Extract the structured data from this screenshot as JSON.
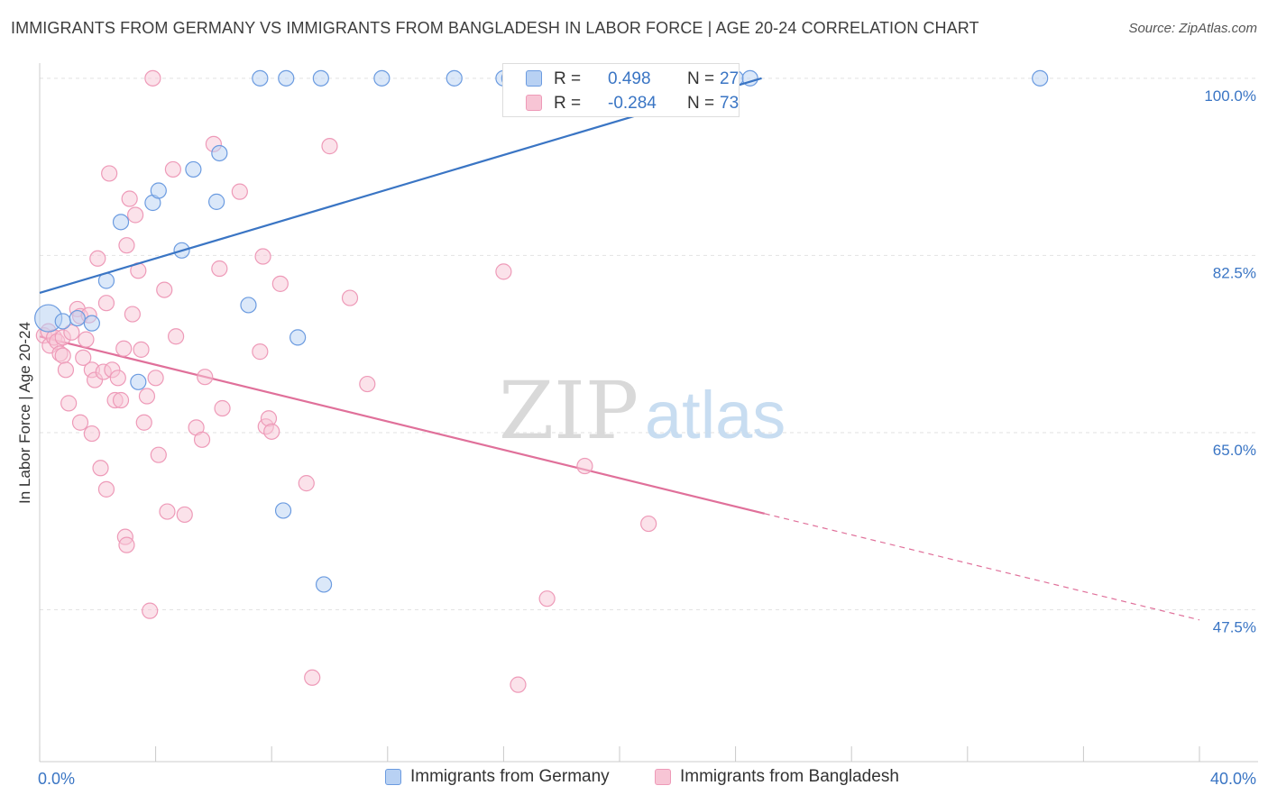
{
  "title": "IMMIGRANTS FROM GERMANY VS IMMIGRANTS FROM BANGLADESH IN LABOR FORCE | AGE 20-24 CORRELATION CHART",
  "source": "Source: ZipAtlas.com",
  "watermark": {
    "zip": "ZIP",
    "atlas": "atlas"
  },
  "colors": {
    "blue": "#3a75c4",
    "blue_fill": "#b8d1f3",
    "blue_stroke": "#6b9be0",
    "pink": "#e0709a",
    "pink_fill": "#f7c5d5",
    "pink_stroke": "#ee9ab8",
    "tick_label": "#3a75c4",
    "grid": "#e2e2e2"
  },
  "stats": [
    {
      "swatch": "blue",
      "r_label": "R =",
      "r_value": "0.498",
      "n_label": "N =",
      "n_value": "27"
    },
    {
      "swatch": "pink",
      "r_label": "R =",
      "r_value": "-0.284",
      "n_label": "N =",
      "n_value": "73"
    }
  ],
  "legend": [
    {
      "swatch": "blue",
      "label": "Immigrants from Germany"
    },
    {
      "swatch": "pink",
      "label": "Immigrants from Bangladesh"
    }
  ],
  "chart_data": {
    "type": "scatter",
    "title": "IMMIGRANTS FROM GERMANY VS IMMIGRANTS FROM BANGLADESH IN LABOR FORCE | AGE 20-24 CORRELATION CHART",
    "xlabel": "",
    "ylabel": "In Labor Force | Age 20-24",
    "xlim": [
      0,
      40
    ],
    "ylim": [
      32.5,
      101.5
    ],
    "x_tick_labels": [
      {
        "value": 0,
        "label": "0.0%"
      },
      {
        "value": 40,
        "label": "40.0%"
      }
    ],
    "y_tick_labels": [
      {
        "value": 47.5,
        "label": "47.5%"
      },
      {
        "value": 65.0,
        "label": "65.0%"
      },
      {
        "value": 82.5,
        "label": "82.5%"
      },
      {
        "value": 100.0,
        "label": "100.0%"
      }
    ],
    "grid": true,
    "legend_position": "bottom",
    "series": [
      {
        "name": "Immigrants from Germany",
        "color": "blue",
        "points": [
          [
            0.3,
            76.3
          ],
          [
            0.8,
            76.0
          ],
          [
            1.3,
            76.3
          ],
          [
            1.8,
            75.8
          ],
          [
            2.3,
            80.0
          ],
          [
            2.8,
            85.8
          ],
          [
            3.4,
            70.0
          ],
          [
            3.9,
            87.7
          ],
          [
            4.1,
            88.9
          ],
          [
            4.9,
            83.0
          ],
          [
            5.3,
            91.0
          ],
          [
            6.1,
            87.8
          ],
          [
            6.2,
            92.6
          ],
          [
            7.2,
            77.6
          ],
          [
            7.6,
            100.0
          ],
          [
            8.5,
            100.0
          ],
          [
            8.4,
            57.3
          ],
          [
            8.9,
            74.4
          ],
          [
            9.7,
            100.0
          ],
          [
            9.8,
            50.0
          ],
          [
            11.8,
            100.0
          ],
          [
            14.3,
            100.0
          ],
          [
            16.0,
            100.0
          ],
          [
            16.2,
            100.0
          ],
          [
            24.0,
            100.0
          ],
          [
            24.5,
            100.0
          ],
          [
            34.5,
            100.0
          ]
        ],
        "point_sizes": {
          "0": "large"
        },
        "trend": {
          "x": [
            0,
            24.9
          ],
          "y": [
            78.8,
            100.0
          ],
          "dashed_to": null
        }
      },
      {
        "name": "Immigrants from Bangladesh",
        "color": "pink",
        "points": [
          [
            0.15,
            74.6
          ],
          [
            0.3,
            75.0
          ],
          [
            0.35,
            73.6
          ],
          [
            0.5,
            74.4
          ],
          [
            0.6,
            74.0
          ],
          [
            0.7,
            72.8
          ],
          [
            0.8,
            72.6
          ],
          [
            0.8,
            74.4
          ],
          [
            0.9,
            71.2
          ],
          [
            1.0,
            67.9
          ],
          [
            1.1,
            74.9
          ],
          [
            1.3,
            77.2
          ],
          [
            1.4,
            66.0
          ],
          [
            1.4,
            76.5
          ],
          [
            1.5,
            72.4
          ],
          [
            1.6,
            74.2
          ],
          [
            1.7,
            76.6
          ],
          [
            1.8,
            71.2
          ],
          [
            1.8,
            64.9
          ],
          [
            1.9,
            70.2
          ],
          [
            2.0,
            82.2
          ],
          [
            2.1,
            61.5
          ],
          [
            2.2,
            71.0
          ],
          [
            2.3,
            77.8
          ],
          [
            2.3,
            59.4
          ],
          [
            2.4,
            90.6
          ],
          [
            2.5,
            71.2
          ],
          [
            2.6,
            68.2
          ],
          [
            2.7,
            70.4
          ],
          [
            2.8,
            68.2
          ],
          [
            2.9,
            73.3
          ],
          [
            2.95,
            54.7
          ],
          [
            3.0,
            53.9
          ],
          [
            3.0,
            83.5
          ],
          [
            3.1,
            88.1
          ],
          [
            3.2,
            76.7
          ],
          [
            3.3,
            86.5
          ],
          [
            3.4,
            81.0
          ],
          [
            3.5,
            73.2
          ],
          [
            3.6,
            66.0
          ],
          [
            3.7,
            68.6
          ],
          [
            3.8,
            47.4
          ],
          [
            3.9,
            100.0
          ],
          [
            4.0,
            70.4
          ],
          [
            4.1,
            62.8
          ],
          [
            4.3,
            79.1
          ],
          [
            4.4,
            57.2
          ],
          [
            4.6,
            91.0
          ],
          [
            4.7,
            74.5
          ],
          [
            5.0,
            56.9
          ],
          [
            5.4,
            65.5
          ],
          [
            5.6,
            64.3
          ],
          [
            5.7,
            70.5
          ],
          [
            6.0,
            93.5
          ],
          [
            6.2,
            81.2
          ],
          [
            6.3,
            67.4
          ],
          [
            6.9,
            88.8
          ],
          [
            7.6,
            73.0
          ],
          [
            7.7,
            82.4
          ],
          [
            7.8,
            65.6
          ],
          [
            7.9,
            66.4
          ],
          [
            8.0,
            65.1
          ],
          [
            8.3,
            79.7
          ],
          [
            9.2,
            60.0
          ],
          [
            9.4,
            40.8
          ],
          [
            10.0,
            93.3
          ],
          [
            10.7,
            78.3
          ],
          [
            11.3,
            69.8
          ],
          [
            16.0,
            80.9
          ],
          [
            16.5,
            40.1
          ],
          [
            17.5,
            48.6
          ],
          [
            18.8,
            61.7
          ],
          [
            21.0,
            56.0
          ]
        ],
        "trend": {
          "x": [
            0,
            25.0
          ],
          "y": [
            74.5,
            57.0
          ],
          "dashed_to": {
            "x": 40.0,
            "y": 46.5
          }
        }
      }
    ]
  }
}
